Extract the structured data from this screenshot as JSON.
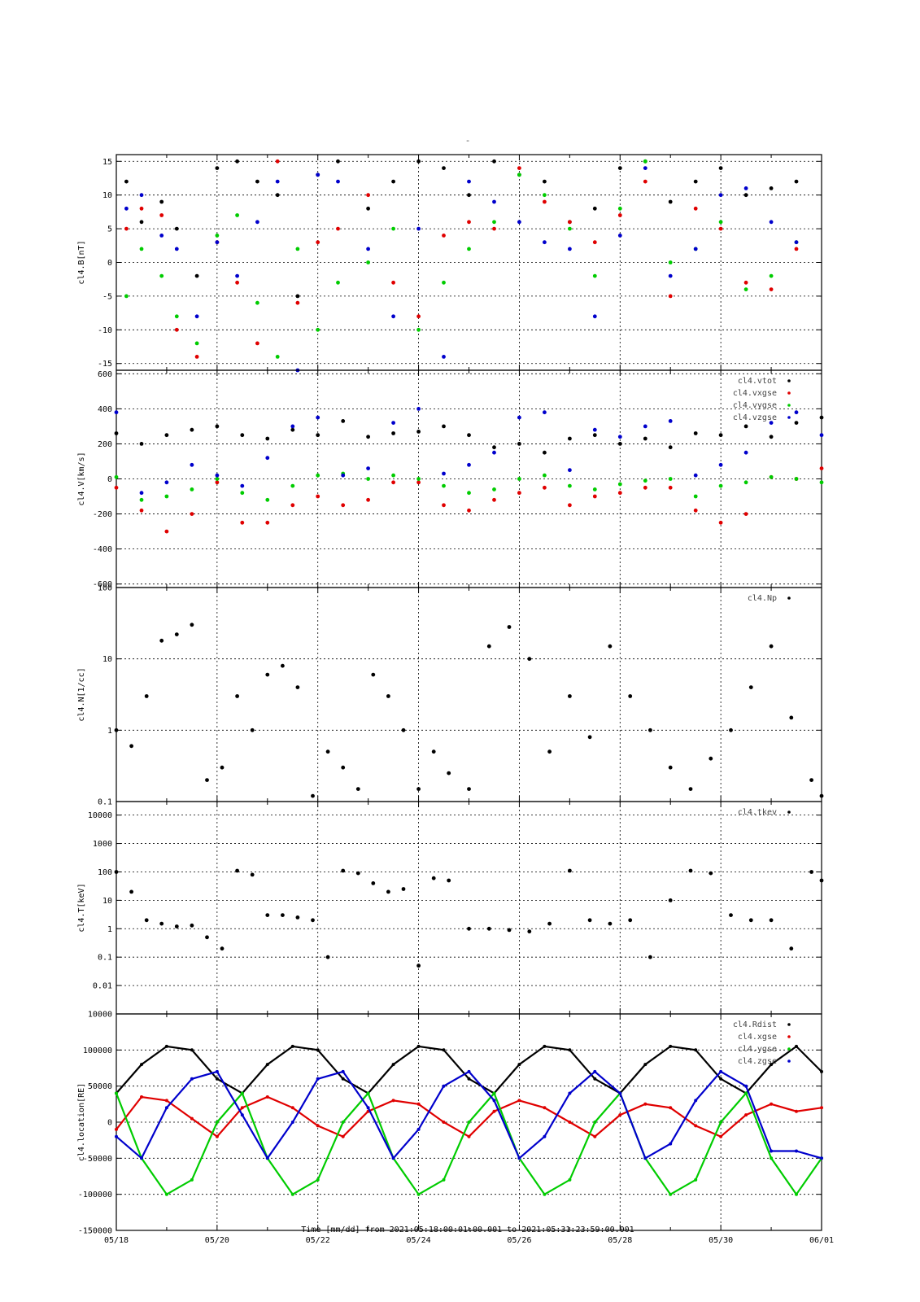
{
  "figure": {
    "title_mark": "-",
    "xlabel": "Time [mm/dd]  from 2021:05:18:00:01:00.001  to  2021:05:31:23:59:00.001",
    "x_tick_labels": [
      "05/18",
      "05/20",
      "05/22",
      "05/24",
      "05/26",
      "05/28",
      "05/30",
      "06/01"
    ],
    "x_range_days": [
      0,
      14
    ],
    "colors": {
      "black": "#000000",
      "red": "#e00000",
      "green": "#00cc00",
      "blue": "#0000cc"
    }
  },
  "chart_data": [
    {
      "type": "scatter",
      "ylabel": "cl4.B[nT]",
      "ylim": [
        -16,
        16
      ],
      "y_ticks": [
        -15,
        -10,
        -5,
        0,
        5,
        10,
        15
      ],
      "y_tick_labels": [
        "-15",
        "-10",
        "-5",
        "0",
        "5",
        "10",
        "15"
      ],
      "log": false,
      "grid": true,
      "legend": [],
      "series": [
        {
          "color": "black",
          "x": [
            0.2,
            0.5,
            0.9,
            1.2,
            1.6,
            2.0,
            2.4,
            2.8,
            3.2,
            3.6,
            4.0,
            4.4,
            5.0,
            5.5,
            6.0,
            6.5,
            7.0,
            7.5,
            8.0,
            8.5,
            9.0,
            9.5,
            10.0,
            10.5,
            11.0,
            11.5,
            12.0,
            12.5,
            13.0,
            13.5
          ],
          "y": [
            12,
            6,
            9,
            5,
            -2,
            14,
            15,
            12,
            10,
            -5,
            13,
            15,
            8,
            12,
            15,
            14,
            10,
            15,
            13,
            12,
            6,
            8,
            14,
            15,
            9,
            12,
            14,
            10,
            11,
            12
          ]
        },
        {
          "color": "red",
          "x": [
            0.2,
            0.5,
            0.9,
            1.2,
            1.6,
            2.0,
            2.4,
            2.8,
            3.2,
            3.6,
            4.0,
            4.4,
            5.0,
            5.5,
            6.0,
            6.5,
            7.0,
            7.5,
            8.0,
            8.5,
            9.0,
            9.5,
            10.0,
            10.5,
            11.0,
            11.5,
            12.0,
            12.5,
            13.0,
            13.5
          ],
          "y": [
            5,
            8,
            7,
            -10,
            -14,
            3,
            -3,
            -12,
            15,
            -6,
            3,
            5,
            10,
            -3,
            -8,
            4,
            6,
            5,
            14,
            9,
            6,
            3,
            7,
            12,
            -5,
            8,
            5,
            -3,
            -4,
            2
          ]
        },
        {
          "color": "green",
          "x": [
            0.2,
            0.5,
            0.9,
            1.2,
            1.6,
            2.0,
            2.4,
            2.8,
            3.2,
            3.6,
            4.0,
            4.4,
            5.0,
            5.5,
            6.0,
            6.5,
            7.0,
            7.5,
            8.0,
            8.5,
            9.0,
            9.5,
            10.0,
            10.5,
            11.0,
            11.5,
            12.0,
            12.5,
            13.0,
            13.5
          ],
          "y": [
            -5,
            2,
            -2,
            -8,
            -12,
            4,
            7,
            -6,
            -14,
            2,
            -10,
            -3,
            0,
            5,
            -10,
            -3,
            2,
            6,
            13,
            10,
            5,
            -2,
            8,
            15,
            0,
            2,
            6,
            -4,
            -2,
            3
          ]
        },
        {
          "color": "blue",
          "x": [
            0.2,
            0.5,
            0.9,
            1.2,
            1.6,
            2.0,
            2.4,
            2.8,
            3.2,
            3.6,
            4.0,
            4.4,
            5.0,
            5.5,
            6.0,
            6.5,
            7.0,
            7.5,
            8.0,
            8.5,
            9.0,
            9.5,
            10.0,
            10.5,
            11.0,
            11.5,
            12.0,
            12.5,
            13.0,
            13.5
          ],
          "y": [
            8,
            10,
            4,
            2,
            -8,
            3,
            -2,
            6,
            12,
            -16,
            13,
            12,
            2,
            -8,
            5,
            -14,
            12,
            9,
            6,
            3,
            2,
            -8,
            4,
            14,
            -2,
            2,
            10,
            11,
            6,
            3
          ]
        }
      ]
    },
    {
      "type": "scatter",
      "ylabel": "cl4.V[km/s]",
      "ylim": [
        -620,
        620
      ],
      "y_ticks": [
        -600,
        -400,
        -200,
        0,
        200,
        400,
        600
      ],
      "y_tick_labels": [
        "-600",
        "-400",
        "-200",
        "0",
        "200",
        "400",
        "600"
      ],
      "log": false,
      "grid": true,
      "legend": [
        "cl4.vtot",
        "cl4.vxgse",
        "cl4.vygse",
        "cl4.vzgse"
      ],
      "series": [
        {
          "name": "cl4.vtot",
          "color": "black",
          "x": [
            0.0,
            0.5,
            1.0,
            1.5,
            2.0,
            2.5,
            3.0,
            3.5,
            4.0,
            4.5,
            5.0,
            5.5,
            6.0,
            6.5,
            7.0,
            7.5,
            8.0,
            8.5,
            9.0,
            9.5,
            10.0,
            10.5,
            11.0,
            11.5,
            12.0,
            12.5,
            13.0,
            13.5,
            14.0
          ],
          "y": [
            260,
            200,
            250,
            280,
            300,
            250,
            230,
            280,
            250,
            330,
            240,
            260,
            270,
            300,
            250,
            180,
            200,
            150,
            230,
            250,
            200,
            230,
            180,
            260,
            250,
            300,
            240,
            320,
            350
          ]
        },
        {
          "name": "cl4.vxgse",
          "color": "red",
          "x": [
            0.0,
            0.5,
            1.0,
            1.5,
            2.0,
            2.5,
            3.0,
            3.5,
            4.0,
            4.5,
            5.0,
            5.5,
            6.0,
            6.5,
            7.0,
            7.5,
            8.0,
            8.5,
            9.0,
            9.5,
            10.0,
            10.5,
            11.0,
            11.5,
            12.0,
            12.5,
            13.0,
            13.5,
            14.0
          ],
          "y": [
            -50,
            -180,
            -300,
            -200,
            -20,
            -250,
            -250,
            -150,
            -100,
            -150,
            -120,
            -20,
            -20,
            -150,
            -180,
            -120,
            -80,
            -50,
            -150,
            -100,
            -80,
            -50,
            -50,
            -180,
            -250,
            -200,
            10,
            0,
            60
          ]
        },
        {
          "name": "cl4.vygse",
          "color": "green",
          "x": [
            0.0,
            0.5,
            1.0,
            1.5,
            2.0,
            2.5,
            3.0,
            3.5,
            4.0,
            4.5,
            5.0,
            5.5,
            6.0,
            6.5,
            7.0,
            7.5,
            8.0,
            8.5,
            9.0,
            9.5,
            10.0,
            10.5,
            11.0,
            11.5,
            12.0,
            12.5,
            13.0,
            13.5,
            14.0
          ],
          "y": [
            10,
            -120,
            -100,
            -60,
            0,
            -80,
            -120,
            -40,
            20,
            30,
            0,
            20,
            0,
            -40,
            -80,
            -60,
            0,
            20,
            -40,
            -60,
            -30,
            -10,
            0,
            -100,
            -40,
            -20,
            10,
            0,
            -20
          ]
        },
        {
          "name": "cl4.vzgse",
          "color": "blue",
          "x": [
            0.0,
            0.5,
            1.0,
            1.5,
            2.0,
            2.5,
            3.0,
            3.5,
            4.0,
            4.5,
            5.0,
            5.5,
            6.0,
            6.5,
            7.0,
            7.5,
            8.0,
            8.5,
            9.0,
            9.5,
            10.0,
            10.5,
            11.0,
            11.5,
            12.0,
            12.5,
            13.0,
            13.5,
            14.0
          ],
          "y": [
            380,
            -80,
            -20,
            80,
            20,
            -40,
            120,
            300,
            350,
            20,
            60,
            320,
            400,
            30,
            80,
            150,
            350,
            380,
            50,
            280,
            240,
            300,
            330,
            20,
            80,
            150,
            320,
            380,
            250
          ]
        }
      ]
    },
    {
      "type": "scatter",
      "ylabel": "cl4.N[1/cc]",
      "ylim": [
        0.1,
        100
      ],
      "y_ticks": [
        0.1,
        1,
        10,
        100
      ],
      "y_tick_labels": [
        "0.1",
        "1",
        "10",
        "100"
      ],
      "log": true,
      "grid": true,
      "legend": [
        "cl4.Np"
      ],
      "series": [
        {
          "name": "cl4.Np",
          "color": "black",
          "x": [
            0.0,
            0.3,
            0.6,
            0.9,
            1.2,
            1.5,
            1.8,
            2.1,
            2.4,
            2.7,
            3.0,
            3.3,
            3.6,
            3.9,
            4.2,
            4.5,
            4.8,
            5.1,
            5.4,
            5.7,
            6.0,
            6.3,
            6.6,
            7.0,
            7.4,
            7.8,
            8.2,
            8.6,
            9.0,
            9.4,
            9.8,
            10.2,
            10.6,
            11.0,
            11.4,
            11.8,
            12.2,
            12.6,
            13.0,
            13.4,
            13.8,
            14.0
          ],
          "y": [
            1.0,
            0.6,
            3.0,
            18.0,
            22.0,
            30.0,
            0.2,
            0.3,
            3.0,
            1.0,
            6.0,
            8.0,
            4.0,
            0.12,
            0.5,
            0.3,
            0.15,
            6.0,
            3.0,
            1.0,
            0.15,
            0.5,
            0.25,
            0.15,
            15.0,
            28.0,
            10.0,
            0.5,
            3.0,
            0.8,
            15.0,
            3.0,
            1.0,
            0.3,
            0.15,
            0.4,
            1.0,
            4.0,
            15.0,
            1.5,
            0.2,
            0.12
          ]
        }
      ]
    },
    {
      "type": "scatter",
      "ylabel": "cl4.T[keV]",
      "ylim": [
        0.001,
        30000
      ],
      "y_ticks": [
        0.01,
        0.1,
        1,
        10,
        100,
        1000,
        10000
      ],
      "y_tick_labels": [
        "0.01",
        "0.1",
        "1",
        "10",
        "100",
        "1000",
        "10000"
      ],
      "bottom_tick_label": "10000",
      "log": true,
      "grid": true,
      "legend": [
        "cl4.tkev"
      ],
      "series": [
        {
          "name": "cl4.tkev",
          "color": "black",
          "x": [
            0.0,
            0.3,
            0.6,
            0.9,
            1.2,
            1.5,
            1.8,
            2.1,
            2.4,
            2.7,
            3.0,
            3.3,
            3.6,
            3.9,
            4.2,
            4.5,
            4.8,
            5.1,
            5.4,
            5.7,
            6.0,
            6.3,
            6.6,
            7.0,
            7.4,
            7.8,
            8.2,
            8.6,
            9.0,
            9.4,
            9.8,
            10.2,
            10.6,
            11.0,
            11.4,
            11.8,
            12.2,
            12.6,
            13.0,
            13.4,
            13.8,
            14.0
          ],
          "y": [
            100.0,
            20.0,
            2.0,
            1.5,
            1.2,
            1.3,
            0.5,
            0.2,
            110.0,
            80.0,
            3.0,
            3.0,
            2.5,
            2.0,
            0.1,
            110.0,
            90.0,
            40.0,
            20.0,
            25.0,
            0.05,
            60.0,
            50.0,
            1.0,
            1.0,
            0.9,
            0.8,
            1.5,
            110.0,
            2.0,
            1.5,
            2.0,
            0.1,
            10.0,
            110.0,
            90.0,
            3.0,
            2.0,
            2.0,
            0.2,
            100.0,
            50.0
          ]
        }
      ]
    },
    {
      "type": "line",
      "ylabel": "cl4.location[RE]",
      "ylim": [
        -150000,
        150000
      ],
      "y_ticks": [
        -150000,
        -100000,
        -50000,
        0,
        50000,
        100000
      ],
      "y_tick_labels": [
        "-150000",
        "-100000",
        "-50000",
        "0",
        "50000",
        "100000"
      ],
      "log": false,
      "grid": true,
      "legend": [
        "cl4.Rdist",
        "cl4.xgse",
        "cl4.ygse",
        "cl4.zgse"
      ],
      "series": [
        {
          "name": "cl4.Rdist",
          "color": "black",
          "x": [
            0.0,
            0.5,
            1.0,
            1.5,
            2.0,
            2.5,
            3.0,
            3.5,
            4.0,
            4.5,
            5.0,
            5.5,
            6.0,
            6.5,
            7.0,
            7.5,
            8.0,
            8.5,
            9.0,
            9.5,
            10.0,
            10.5,
            11.0,
            11.5,
            12.0,
            12.5,
            13.0,
            13.5,
            14.0
          ],
          "y": [
            40000,
            80000,
            105000,
            100000,
            60000,
            40000,
            80000,
            105000,
            100000,
            60000,
            40000,
            80000,
            105000,
            100000,
            60000,
            40000,
            80000,
            105000,
            100000,
            60000,
            40000,
            80000,
            105000,
            100000,
            60000,
            40000,
            80000,
            105000,
            70000
          ]
        },
        {
          "name": "cl4.xgse",
          "color": "red",
          "x": [
            0.0,
            0.5,
            1.0,
            1.5,
            2.0,
            2.5,
            3.0,
            3.5,
            4.0,
            4.5,
            5.0,
            5.5,
            6.0,
            6.5,
            7.0,
            7.5,
            8.0,
            8.5,
            9.0,
            9.5,
            10.0,
            10.5,
            11.0,
            11.5,
            12.0,
            12.5,
            13.0,
            13.5,
            14.0
          ],
          "y": [
            -10000,
            35000,
            30000,
            5000,
            -20000,
            20000,
            35000,
            20000,
            -5000,
            -20000,
            15000,
            30000,
            25000,
            0,
            -20000,
            15000,
            30000,
            20000,
            0,
            -20000,
            10000,
            25000,
            20000,
            -5000,
            -20000,
            10000,
            25000,
            15000,
            20000
          ]
        },
        {
          "name": "cl4.ygse",
          "color": "green",
          "x": [
            0.0,
            0.5,
            1.0,
            1.5,
            2.0,
            2.5,
            3.0,
            3.5,
            4.0,
            4.5,
            5.0,
            5.5,
            6.0,
            6.5,
            7.0,
            7.5,
            8.0,
            8.5,
            9.0,
            9.5,
            10.0,
            10.5,
            11.0,
            11.5,
            12.0,
            12.5,
            13.0,
            13.5,
            14.0
          ],
          "y": [
            40000,
            -50000,
            -100000,
            -80000,
            0,
            40000,
            -50000,
            -100000,
            -80000,
            0,
            40000,
            -50000,
            -100000,
            -80000,
            0,
            40000,
            -50000,
            -100000,
            -80000,
            0,
            40000,
            -50000,
            -100000,
            -80000,
            0,
            40000,
            -50000,
            -100000,
            -50000
          ]
        },
        {
          "name": "cl4.zgse",
          "color": "blue",
          "x": [
            0.0,
            0.5,
            1.0,
            1.5,
            2.0,
            2.5,
            3.0,
            3.5,
            4.0,
            4.5,
            5.0,
            5.5,
            6.0,
            6.5,
            7.0,
            7.5,
            8.0,
            8.5,
            9.0,
            9.5,
            10.0,
            10.5,
            11.0,
            11.5,
            12.0,
            12.5,
            13.0,
            13.5,
            14.0
          ],
          "y": [
            -20000,
            -50000,
            20000,
            60000,
            70000,
            10000,
            -50000,
            0,
            60000,
            70000,
            20000,
            -50000,
            -10000,
            50000,
            70000,
            30000,
            -50000,
            -20000,
            40000,
            70000,
            40000,
            -50000,
            -30000,
            30000,
            70000,
            50000,
            -40000,
            -40000,
            -50000
          ]
        }
      ]
    }
  ]
}
